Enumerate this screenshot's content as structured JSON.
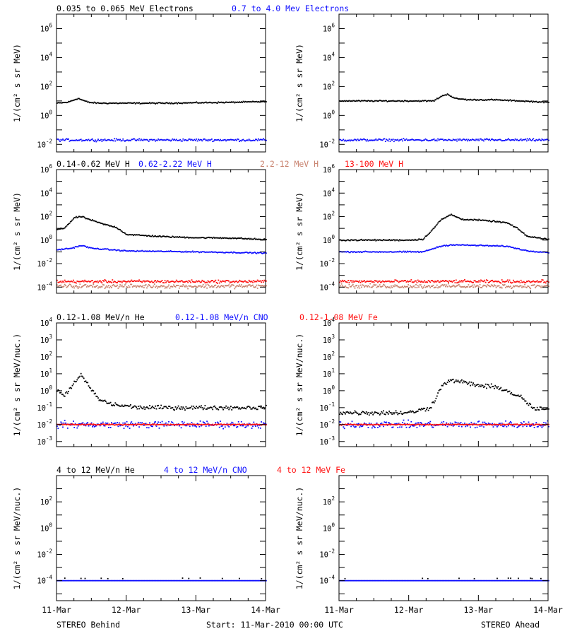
{
  "colors": {
    "black": "#000000",
    "blue": "#1010ff",
    "brown": "#c8826e",
    "red": "#ff1010"
  },
  "footer": {
    "left": "STEREO Behind",
    "center": "Start: 11-Mar-2010 00:00 UTC",
    "right": "STEREO Ahead"
  },
  "chart_data": [
    {
      "type": "scatter",
      "row": 1,
      "legend": [
        {
          "label": "0.035 to 0.065 MeV Electrons",
          "color": "#000000"
        },
        {
          "label": "0.7 to 4.0 Mev Electrons",
          "color": "#1010ff"
        }
      ],
      "ylabel": "1/(cm² s sr MeV)",
      "yscale": "log",
      "ylim": [
        0.003,
        10000000
      ],
      "yticks": [
        {
          "exp": "-2"
        },
        {
          "exp": "0"
        },
        {
          "exp": "2"
        },
        {
          "exp": "4"
        },
        {
          "exp": "6"
        }
      ],
      "x": [
        "11-Mar",
        "12-Mar",
        "13-Mar",
        "14-Mar"
      ],
      "panels": {
        "behind": [
          {
            "name": "0.035 to 0.065 MeV Electrons",
            "color": "#000000",
            "points": [
              [
                0,
                7
              ],
              [
                0.15,
                8
              ],
              [
                0.3,
                15
              ],
              [
                0.45,
                8
              ],
              [
                0.6,
                7
              ],
              [
                1,
                7
              ],
              [
                1.5,
                7
              ],
              [
                2,
                7.5
              ],
              [
                2.5,
                8
              ],
              [
                3,
                9
              ]
            ],
            "spread": 0.06
          },
          {
            "name": "0.7 to 4.0 Mev Electrons",
            "color": "#1010ff",
            "points": [
              [
                0,
                0.02
              ],
              [
                1,
                0.02
              ],
              [
                2,
                0.02
              ],
              [
                3,
                0.02
              ]
            ],
            "spread": 0.12
          }
        ],
        "ahead": [
          {
            "name": "0.035 to 0.065 MeV Electrons",
            "color": "#000000",
            "points": [
              [
                0,
                10
              ],
              [
                1,
                10
              ],
              [
                1.35,
                10
              ],
              [
                1.45,
                20
              ],
              [
                1.55,
                30
              ],
              [
                1.65,
                15
              ],
              [
                1.85,
                12
              ],
              [
                2.2,
                12
              ],
              [
                2.6,
                10
              ],
              [
                3,
                8
              ]
            ],
            "spread": 0.06
          },
          {
            "name": "0.7 to 4.0 Mev Electrons",
            "color": "#1010ff",
            "points": [
              [
                0,
                0.02
              ],
              [
                1,
                0.02
              ],
              [
                2,
                0.02
              ],
              [
                3,
                0.02
              ]
            ],
            "spread": 0.12
          }
        ]
      }
    },
    {
      "type": "scatter",
      "row": 2,
      "legend": [
        {
          "label": "0.14-0.62 MeV H",
          "color": "#000000"
        },
        {
          "label": "0.62-2.22 MeV H",
          "color": "#1010ff"
        },
        {
          "label": "2.2-12 MeV H",
          "color": "#c8826e"
        },
        {
          "label": "13-100 MeV H",
          "color": "#ff1010"
        }
      ],
      "ylabel": "1/(cm² s sr MeV)",
      "yscale": "log",
      "ylim": [
        3e-05,
        1000000
      ],
      "yticks": [
        {
          "exp": "-4"
        },
        {
          "exp": "-2"
        },
        {
          "exp": "0"
        },
        {
          "exp": "2"
        },
        {
          "exp": "4"
        },
        {
          "exp": "6"
        }
      ],
      "x": [
        "11-Mar",
        "12-Mar",
        "13-Mar",
        "14-Mar"
      ],
      "panels": {
        "behind": [
          {
            "name": "0.14-0.62 MeV H",
            "color": "#000000",
            "points": [
              [
                0,
                8
              ],
              [
                0.1,
                10
              ],
              [
                0.25,
                80
              ],
              [
                0.35,
                100
              ],
              [
                0.45,
                60
              ],
              [
                0.6,
                30
              ],
              [
                0.7,
                20
              ],
              [
                0.85,
                12
              ],
              [
                1,
                3
              ],
              [
                1.5,
                2
              ],
              [
                2,
                1.6
              ],
              [
                2.5,
                1.5
              ],
              [
                3,
                1.1
              ]
            ],
            "spread": 0.08
          },
          {
            "name": "0.62-2.22 MeV H",
            "color": "#1010ff",
            "points": [
              [
                0,
                0.15
              ],
              [
                0.2,
                0.2
              ],
              [
                0.35,
                0.35
              ],
              [
                0.5,
                0.2
              ],
              [
                1,
                0.12
              ],
              [
                2,
                0.1
              ],
              [
                3,
                0.08
              ]
            ],
            "spread": 0.07
          },
          {
            "name": "2.2-12 MeV H",
            "color": "#c8826e",
            "points": [
              [
                0,
                0.00012
              ],
              [
                1,
                0.00012
              ],
              [
                2,
                0.00012
              ],
              [
                3,
                0.00012
              ]
            ],
            "spread": 0.25
          },
          {
            "name": "13-100 MeV H",
            "color": "#ff1010",
            "points": [
              [
                0,
                0.0003
              ],
              [
                1,
                0.0003
              ],
              [
                2,
                0.0003
              ],
              [
                3,
                0.0003
              ]
            ],
            "spread": 0.18
          }
        ],
        "ahead": [
          {
            "name": "0.14-0.62 MeV H",
            "color": "#000000",
            "points": [
              [
                0,
                1
              ],
              [
                1,
                1
              ],
              [
                1.2,
                1.2
              ],
              [
                1.35,
                10
              ],
              [
                1.45,
                50
              ],
              [
                1.6,
                150
              ],
              [
                1.75,
                60
              ],
              [
                2,
                50
              ],
              [
                2.2,
                40
              ],
              [
                2.4,
                30
              ],
              [
                2.55,
                10
              ],
              [
                2.7,
                2
              ],
              [
                3,
                1.2
              ]
            ],
            "spread": 0.08
          },
          {
            "name": "0.62-2.22 MeV H",
            "color": "#1010ff",
            "points": [
              [
                0,
                0.1
              ],
              [
                1.2,
                0.1
              ],
              [
                1.45,
                0.3
              ],
              [
                1.6,
                0.4
              ],
              [
                2,
                0.35
              ],
              [
                2.4,
                0.3
              ],
              [
                2.7,
                0.12
              ],
              [
                3,
                0.09
              ]
            ],
            "spread": 0.07
          },
          {
            "name": "2.2-12 MeV H",
            "color": "#c8826e",
            "points": [
              [
                0,
                0.00012
              ],
              [
                3,
                0.00012
              ]
            ],
            "spread": 0.25
          },
          {
            "name": "13-100 MeV H",
            "color": "#ff1010",
            "points": [
              [
                0,
                0.0003
              ],
              [
                3,
                0.0003
              ]
            ],
            "spread": 0.18
          }
        ]
      }
    },
    {
      "type": "scatter",
      "row": 3,
      "legend": [
        {
          "label": "0.12-1.08 MeV/n He",
          "color": "#000000"
        },
        {
          "label": "0.12-1.08 MeV/n CNO",
          "color": "#1010ff"
        },
        {
          "label": "0.12-1.08 MeV Fe",
          "color": "#ff1010"
        }
      ],
      "ylabel": "1/(cm² s sr MeV/nuc.)",
      "yscale": "log",
      "ylim": [
        0.0005,
        10000
      ],
      "yticks": [
        {
          "exp": "-3"
        },
        {
          "exp": "-2"
        },
        {
          "exp": "-1"
        },
        {
          "exp": "0"
        },
        {
          "exp": "1"
        },
        {
          "exp": "2"
        },
        {
          "exp": "3"
        },
        {
          "exp": "4"
        }
      ],
      "x": [
        "11-Mar",
        "12-Mar",
        "13-Mar",
        "14-Mar"
      ],
      "panels": {
        "behind": [
          {
            "name": "0.12-1.08 MeV/n He",
            "color": "#000000",
            "points": [
              [
                0,
                1
              ],
              [
                0.1,
                0.5
              ],
              [
                0.25,
                3
              ],
              [
                0.35,
                8
              ],
              [
                0.45,
                2
              ],
              [
                0.6,
                0.3
              ],
              [
                0.8,
                0.15
              ],
              [
                1.2,
                0.1
              ],
              [
                1.7,
                0.1
              ],
              [
                2.2,
                0.1
              ],
              [
                2.7,
                0.1
              ],
              [
                3,
                0.1
              ]
            ],
            "spread": 0.18
          },
          {
            "name": "0.12-1.08 MeV/n CNO",
            "color": "#1010ff",
            "points": [
              [
                0,
                0.01
              ],
              [
                3,
                0.01
              ]
            ],
            "spread": 0.3
          },
          {
            "name": "0.12-1.08 MeV Fe",
            "color": "#ff1010",
            "points": [
              [
                0,
                0.01
              ],
              [
                3,
                0.01
              ]
            ],
            "spread": 0.05
          }
        ],
        "ahead": [
          {
            "name": "0.12-1.08 MeV/n He",
            "color": "#000000",
            "points": [
              [
                0,
                0.05
              ],
              [
                1,
                0.05
              ],
              [
                1.3,
                0.1
              ],
              [
                1.5,
                3
              ],
              [
                1.65,
                4
              ],
              [
                2,
                2
              ],
              [
                2.3,
                1.5
              ],
              [
                2.6,
                0.4
              ],
              [
                2.8,
                0.08
              ],
              [
                3,
                0.08
              ]
            ],
            "spread": 0.2
          },
          {
            "name": "0.12-1.08 MeV/n CNO",
            "color": "#1010ff",
            "points": [
              [
                0,
                0.01
              ],
              [
                3,
                0.01
              ]
            ],
            "spread": 0.3
          },
          {
            "name": "0.12-1.08 MeV Fe",
            "color": "#ff1010",
            "points": [
              [
                0,
                0.01
              ],
              [
                3,
                0.01
              ]
            ],
            "spread": 0.05
          }
        ]
      }
    },
    {
      "type": "scatter",
      "row": 4,
      "legend": [
        {
          "label": "4 to 12 MeV/n He",
          "color": "#000000"
        },
        {
          "label": "4 to 12 MeV/n CNO",
          "color": "#1010ff"
        },
        {
          "label": "4 to 12 MeV Fe",
          "color": "#ff1010"
        }
      ],
      "ylabel": "1/(cm² s sr MeV/nuc.)",
      "yscale": "log",
      "ylim": [
        3e-06,
        10000
      ],
      "yticks": [
        {
          "exp": "-4"
        },
        {
          "exp": "-2"
        },
        {
          "exp": "0"
        },
        {
          "exp": "2"
        }
      ],
      "x": [
        "11-Mar",
        "12-Mar",
        "13-Mar",
        "14-Mar"
      ],
      "panels": {
        "behind": [
          {
            "name": "4 to 12 MeV/n He",
            "color": "#000000",
            "points": [
              [
                0,
                0.00015
              ],
              [
                3,
                0.00015
              ]
            ],
            "spread": 0.05,
            "sparse": true
          },
          {
            "name": "4 to 12 MeV/n CNO",
            "color": "#1010ff",
            "points": [
              [
                0,
                0.0001
              ],
              [
                3,
                0.0001
              ]
            ],
            "spread": 0.0
          }
        ],
        "ahead": [
          {
            "name": "4 to 12 MeV/n He",
            "color": "#000000",
            "points": [
              [
                0,
                0.00015
              ],
              [
                3,
                0.00015
              ]
            ],
            "spread": 0.05,
            "sparse": true
          },
          {
            "name": "4 to 12 MeV/n CNO",
            "color": "#1010ff",
            "points": [
              [
                0,
                0.0001
              ],
              [
                3,
                0.0001
              ]
            ],
            "spread": 0.0
          }
        ]
      }
    }
  ]
}
